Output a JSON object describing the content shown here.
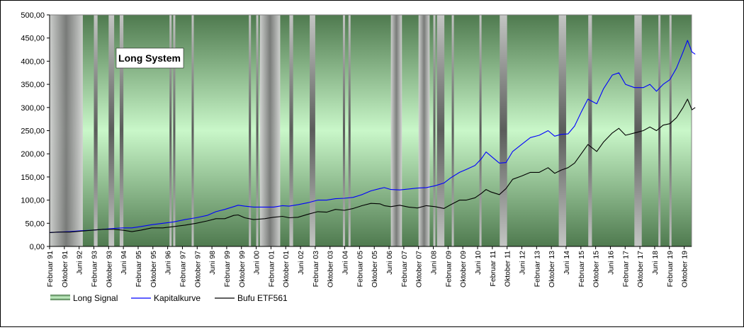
{
  "chart_data": {
    "type": "line",
    "title_box": "Long System",
    "ylim": [
      0,
      500
    ],
    "y_ticks": [
      "0,00",
      "50,00",
      "100,00",
      "150,00",
      "200,00",
      "250,00",
      "300,00",
      "350,00",
      "400,00",
      "450,00",
      "500,00"
    ],
    "x_ticks": [
      "Februar 91",
      "Oktober 91",
      "Juni 92",
      "Februar 93",
      "Oktober 93",
      "Juni 94",
      "Februar 95",
      "Oktober 95",
      "Juni 96",
      "Februar 97",
      "Oktober 97",
      "Juni 98",
      "Februar 99",
      "Oktober 99",
      "Juni 00",
      "Februar 01",
      "Oktober 01",
      "Juni 02",
      "Februar 03",
      "Oktober 03",
      "Juni 04",
      "Februar 05",
      "Oktober 05",
      "Juni 06",
      "Februar 07",
      "Oktober 07",
      "Juni 08",
      "Februar 09",
      "Oktober 09",
      "Juni 10",
      "Februar 11",
      "Oktober 11",
      "Juni 12",
      "Februar 13",
      "Oktober 13",
      "Juni 14",
      "Februar 15",
      "Oktober 15",
      "Juni 16",
      "Februar 17",
      "Oktober 17",
      "Juni 18",
      "Februar 19",
      "Oktober 19"
    ],
    "x_range": [
      "Februar 91",
      "Februar 20"
    ],
    "legend": {
      "placement": "bottom-left",
      "entries": [
        "Long Signal",
        "Kapitalkurve",
        "Bufu ETF561"
      ]
    },
    "colors": {
      "kapitalkurve": "#0000ff",
      "bufu": "#000000",
      "long_on": "#c8f5c8",
      "long_off": "#b4b4b4"
    },
    "long_signal_off_periods": [
      [
        "Februar 91",
        "Juli 92"
      ],
      [
        "Februar 93",
        "März 93"
      ],
      [
        "Oktober 93",
        "Dezember 93"
      ],
      [
        "April 94",
        "Mai 94"
      ],
      [
        "Juli 96",
        "Juli 96"
      ],
      [
        "September 96",
        "September 96"
      ],
      [
        "Juli 97",
        "Juli 97"
      ],
      [
        "Februar 00",
        "Februar 00"
      ],
      [
        "Juni 00",
        "Juni 00"
      ],
      [
        "August 00",
        "Juni 01"
      ],
      [
        "Dezember 01",
        "Januar 02"
      ],
      [
        "November 02",
        "Januar 03"
      ],
      [
        "Mai 04",
        "Mai 04"
      ],
      [
        "August 04",
        "August 04"
      ],
      [
        "Juli 06",
        "Dezember 06"
      ],
      [
        "Oktober 07",
        "März 08"
      ],
      [
        "Juni 08",
        "Juni 08"
      ],
      [
        "August 08",
        "November 08"
      ],
      [
        "April 09",
        "April 09"
      ],
      [
        "Juli 10",
        "Juli 10"
      ],
      [
        "Juni 11",
        "September 11"
      ],
      [
        "Februar 14",
        "Mai 14"
      ],
      [
        "Juni 15",
        "Juli 15"
      ],
      [
        "Juli 17",
        "Juli 17"
      ],
      [
        "August 17",
        "Oktober 17"
      ],
      [
        "August 18",
        "August 18"
      ],
      [
        "Februar 19",
        "Februar 19"
      ]
    ],
    "series": [
      {
        "name": "Kapitalkurve",
        "points": [
          [
            1991.08,
            30
          ],
          [
            1991.5,
            31
          ],
          [
            1992.0,
            32
          ],
          [
            1992.5,
            34
          ],
          [
            1993.0,
            35
          ],
          [
            1993.5,
            37
          ],
          [
            1994.0,
            39
          ],
          [
            1994.4,
            40
          ],
          [
            1994.8,
            40
          ],
          [
            1995.2,
            43
          ],
          [
            1995.7,
            47
          ],
          [
            1996.2,
            50
          ],
          [
            1996.7,
            53
          ],
          [
            1997.2,
            58
          ],
          [
            1997.7,
            62
          ],
          [
            1998.2,
            67
          ],
          [
            1998.6,
            75
          ],
          [
            1999.0,
            80
          ],
          [
            1999.4,
            86
          ],
          [
            1999.6,
            89
          ],
          [
            1999.9,
            87
          ],
          [
            2000.3,
            85
          ],
          [
            2000.8,
            85
          ],
          [
            2001.2,
            85
          ],
          [
            2001.6,
            88
          ],
          [
            2001.9,
            87
          ],
          [
            2002.3,
            90
          ],
          [
            2002.8,
            95
          ],
          [
            2003.2,
            100
          ],
          [
            2003.6,
            100
          ],
          [
            2004.0,
            103
          ],
          [
            2004.4,
            104
          ],
          [
            2004.8,
            106
          ],
          [
            2005.2,
            112
          ],
          [
            2005.6,
            120
          ],
          [
            2006.0,
            125
          ],
          [
            2006.2,
            127
          ],
          [
            2006.5,
            123
          ],
          [
            2006.9,
            122
          ],
          [
            2007.3,
            124
          ],
          [
            2007.7,
            126
          ],
          [
            2008.1,
            127
          ],
          [
            2008.5,
            131
          ],
          [
            2008.9,
            137
          ],
          [
            2009.2,
            148
          ],
          [
            2009.6,
            160
          ],
          [
            2009.9,
            166
          ],
          [
            2010.3,
            175
          ],
          [
            2010.6,
            190
          ],
          [
            2010.8,
            204
          ],
          [
            2011.0,
            196
          ],
          [
            2011.4,
            180
          ],
          [
            2011.7,
            181
          ],
          [
            2012.0,
            205
          ],
          [
            2012.4,
            220
          ],
          [
            2012.8,
            235
          ],
          [
            2013.2,
            240
          ],
          [
            2013.6,
            250
          ],
          [
            2013.9,
            238
          ],
          [
            2014.2,
            242
          ],
          [
            2014.5,
            243
          ],
          [
            2014.8,
            260
          ],
          [
            2015.1,
            290
          ],
          [
            2015.4,
            318
          ],
          [
            2015.8,
            308
          ],
          [
            2016.1,
            340
          ],
          [
            2016.5,
            370
          ],
          [
            2016.8,
            375
          ],
          [
            2017.1,
            350
          ],
          [
            2017.5,
            343
          ],
          [
            2017.9,
            343
          ],
          [
            2018.2,
            350
          ],
          [
            2018.5,
            335
          ],
          [
            2018.8,
            350
          ],
          [
            2019.1,
            360
          ],
          [
            2019.4,
            385
          ],
          [
            2019.7,
            420
          ],
          [
            2019.9,
            445
          ],
          [
            2020.1,
            420
          ],
          [
            2020.25,
            415
          ]
        ]
      },
      {
        "name": "Bufu ETF561",
        "points": [
          [
            1991.08,
            30
          ],
          [
            1991.5,
            31
          ],
          [
            1992.0,
            31
          ],
          [
            1992.5,
            33
          ],
          [
            1993.0,
            35
          ],
          [
            1993.5,
            37
          ],
          [
            1994.0,
            37
          ],
          [
            1994.4,
            35
          ],
          [
            1994.8,
            32
          ],
          [
            1995.2,
            35
          ],
          [
            1995.7,
            40
          ],
          [
            1996.2,
            40
          ],
          [
            1996.7,
            43
          ],
          [
            1997.2,
            46
          ],
          [
            1997.7,
            50
          ],
          [
            1998.2,
            55
          ],
          [
            1998.6,
            60
          ],
          [
            1999.0,
            60
          ],
          [
            1999.4,
            67
          ],
          [
            1999.6,
            68
          ],
          [
            1999.9,
            62
          ],
          [
            2000.3,
            58
          ],
          [
            2000.8,
            60
          ],
          [
            2001.2,
            63
          ],
          [
            2001.6,
            65
          ],
          [
            2001.9,
            62
          ],
          [
            2002.3,
            63
          ],
          [
            2002.8,
            70
          ],
          [
            2003.2,
            75
          ],
          [
            2003.6,
            74
          ],
          [
            2004.0,
            80
          ],
          [
            2004.4,
            78
          ],
          [
            2004.8,
            82
          ],
          [
            2005.2,
            88
          ],
          [
            2005.6,
            93
          ],
          [
            2006.0,
            92
          ],
          [
            2006.2,
            88
          ],
          [
            2006.5,
            86
          ],
          [
            2006.9,
            89
          ],
          [
            2007.3,
            85
          ],
          [
            2007.7,
            83
          ],
          [
            2008.1,
            88
          ],
          [
            2008.5,
            86
          ],
          [
            2008.9,
            82
          ],
          [
            2009.2,
            90
          ],
          [
            2009.6,
            100
          ],
          [
            2009.9,
            100
          ],
          [
            2010.3,
            105
          ],
          [
            2010.6,
            115
          ],
          [
            2010.8,
            123
          ],
          [
            2011.0,
            118
          ],
          [
            2011.4,
            112
          ],
          [
            2011.7,
            125
          ],
          [
            2012.0,
            145
          ],
          [
            2012.4,
            152
          ],
          [
            2012.8,
            160
          ],
          [
            2013.2,
            160
          ],
          [
            2013.6,
            170
          ],
          [
            2013.9,
            158
          ],
          [
            2014.2,
            165
          ],
          [
            2014.5,
            170
          ],
          [
            2014.8,
            180
          ],
          [
            2015.1,
            200
          ],
          [
            2015.4,
            220
          ],
          [
            2015.8,
            205
          ],
          [
            2016.1,
            225
          ],
          [
            2016.5,
            245
          ],
          [
            2016.8,
            255
          ],
          [
            2017.1,
            240
          ],
          [
            2017.5,
            245
          ],
          [
            2017.9,
            250
          ],
          [
            2018.2,
            258
          ],
          [
            2018.5,
            250
          ],
          [
            2018.8,
            262
          ],
          [
            2019.1,
            265
          ],
          [
            2019.4,
            278
          ],
          [
            2019.7,
            300
          ],
          [
            2019.9,
            318
          ],
          [
            2020.1,
            295
          ],
          [
            2020.25,
            300
          ]
        ]
      }
    ]
  }
}
